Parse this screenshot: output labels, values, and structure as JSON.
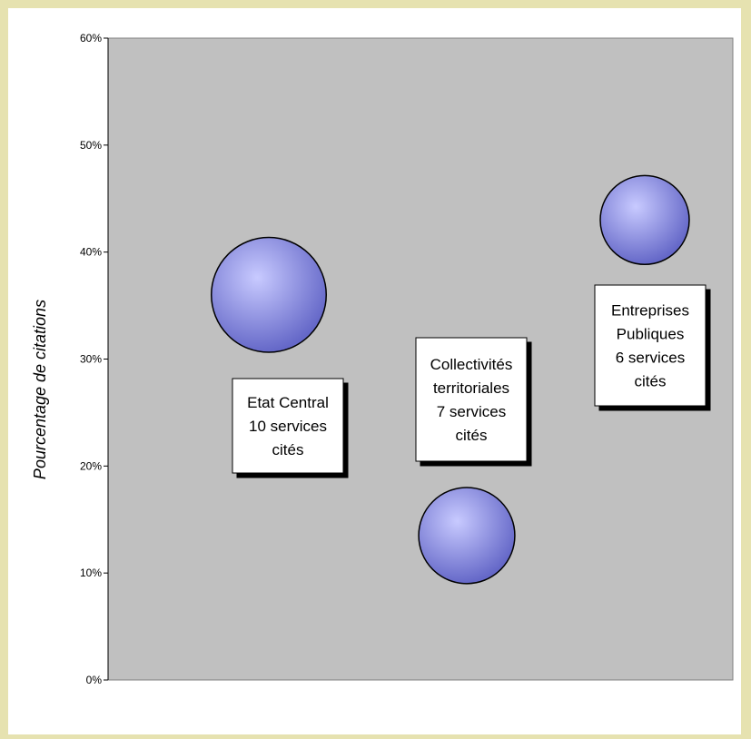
{
  "chart_data": {
    "type": "bubble",
    "ylabel": "Pourcentage de citations",
    "ylim": [
      0,
      60
    ],
    "yticks": [
      "0%",
      "10%",
      "20%",
      "30%",
      "40%",
      "50%",
      "60%"
    ],
    "grid": false,
    "legend": "none",
    "series": [
      {
        "x": 1,
        "y": 36,
        "size": 10,
        "label": [
          "Etat Central",
          "10 services",
          "cités"
        ]
      },
      {
        "x": 2,
        "y": 13.5,
        "size": 7,
        "label": [
          "Collectivités",
          "territoriales",
          "7 services",
          "cités"
        ]
      },
      {
        "x": 3,
        "y": 43,
        "size": 6,
        "label": [
          "Entreprises",
          "Publiques",
          "6 services",
          "cités"
        ]
      }
    ]
  },
  "colors": {
    "frame_background": "#e6e2b0",
    "plot_background": "#c0c0c0",
    "bubble_light": "#c8caff",
    "bubble_dark": "#6568c8"
  }
}
